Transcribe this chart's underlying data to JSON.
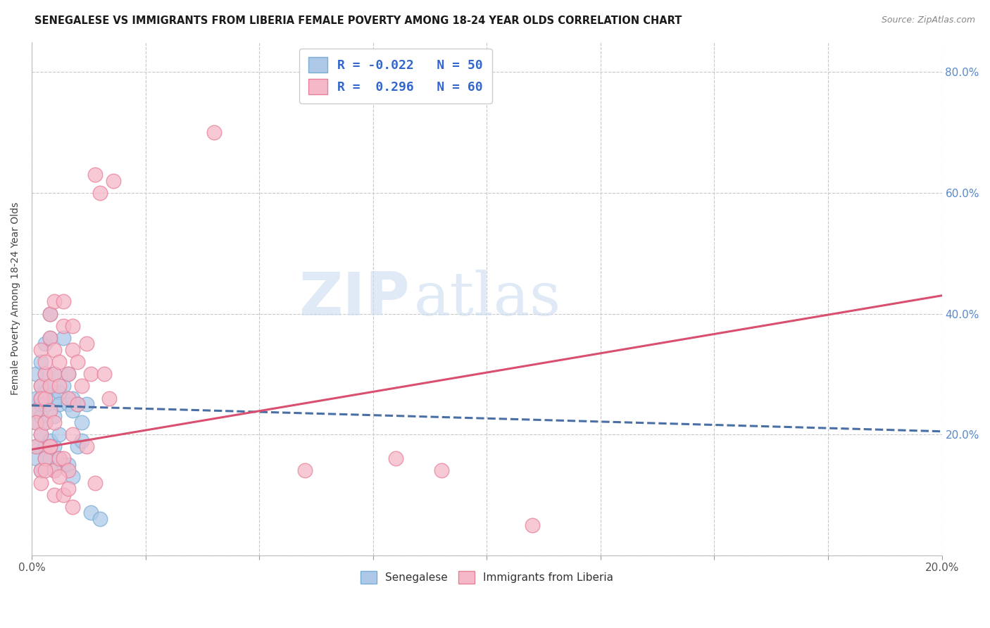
{
  "title": "SENEGALESE VS IMMIGRANTS FROM LIBERIA FEMALE POVERTY AMONG 18-24 YEAR OLDS CORRELATION CHART",
  "source": "Source: ZipAtlas.com",
  "ylabel": "Female Poverty Among 18-24 Year Olds",
  "xlim": [
    0.0,
    0.2
  ],
  "ylim": [
    0.0,
    0.85
  ],
  "xticks": [
    0.0,
    0.025,
    0.05,
    0.075,
    0.1,
    0.125,
    0.15,
    0.175,
    0.2
  ],
  "yticks": [
    0.0,
    0.2,
    0.4,
    0.6,
    0.8
  ],
  "xticklabels_show": [
    "0.0%",
    "20.0%"
  ],
  "right_yticklabels": [
    "",
    "20.0%",
    "40.0%",
    "60.0%",
    "80.0%"
  ],
  "blue_color": "#aec9e8",
  "blue_edge": "#7aadd4",
  "pink_color": "#f5b8c8",
  "pink_edge": "#e8809a",
  "blue_line_color": "#4a6fa5",
  "pink_line_color": "#d94f70",
  "grid_color": "#c8c8c8",
  "legend_R_blue": "-0.022",
  "legend_N_blue": "50",
  "legend_R_pink": "0.296",
  "legend_N_pink": "60",
  "senegalese_label": "Senegalese",
  "liberia_label": "Immigrants from Liberia",
  "watermark_zip": "ZIP",
  "watermark_atlas": "atlas",
  "blue_trend_x0": 0.0,
  "blue_trend_y0": 0.248,
  "blue_trend_x1": 0.2,
  "blue_trend_y1": 0.205,
  "pink_trend_x0": 0.0,
  "pink_trend_y0": 0.175,
  "pink_trend_x1": 0.2,
  "pink_trend_y1": 0.43,
  "blue_scatter_x": [
    0.001,
    0.001,
    0.001,
    0.001,
    0.002,
    0.002,
    0.002,
    0.002,
    0.002,
    0.003,
    0.003,
    0.003,
    0.003,
    0.004,
    0.004,
    0.004,
    0.005,
    0.005,
    0.005,
    0.006,
    0.006,
    0.007,
    0.007,
    0.008,
    0.008,
    0.009,
    0.009,
    0.01,
    0.011,
    0.012,
    0.001,
    0.001,
    0.002,
    0.002,
    0.003,
    0.003,
    0.003,
    0.004,
    0.004,
    0.005,
    0.005,
    0.006,
    0.006,
    0.007,
    0.008,
    0.009,
    0.01,
    0.011,
    0.013,
    0.015
  ],
  "blue_scatter_y": [
    0.26,
    0.24,
    0.3,
    0.22,
    0.28,
    0.26,
    0.32,
    0.23,
    0.25,
    0.35,
    0.3,
    0.27,
    0.25,
    0.4,
    0.36,
    0.28,
    0.3,
    0.26,
    0.23,
    0.27,
    0.25,
    0.36,
    0.28,
    0.25,
    0.3,
    0.24,
    0.26,
    0.25,
    0.22,
    0.25,
    0.18,
    0.16,
    0.2,
    0.14,
    0.22,
    0.18,
    0.16,
    0.19,
    0.16,
    0.18,
    0.14,
    0.16,
    0.2,
    0.15,
    0.15,
    0.13,
    0.18,
    0.19,
    0.07,
    0.06
  ],
  "pink_scatter_x": [
    0.001,
    0.001,
    0.002,
    0.002,
    0.002,
    0.003,
    0.003,
    0.003,
    0.004,
    0.004,
    0.004,
    0.005,
    0.005,
    0.005,
    0.006,
    0.006,
    0.007,
    0.007,
    0.008,
    0.008,
    0.009,
    0.009,
    0.01,
    0.011,
    0.012,
    0.013,
    0.014,
    0.015,
    0.016,
    0.018,
    0.001,
    0.002,
    0.002,
    0.003,
    0.003,
    0.004,
    0.004,
    0.005,
    0.005,
    0.006,
    0.007,
    0.008,
    0.009,
    0.01,
    0.012,
    0.014,
    0.017,
    0.06,
    0.08,
    0.09,
    0.002,
    0.003,
    0.004,
    0.005,
    0.006,
    0.007,
    0.008,
    0.009,
    0.04,
    0.11
  ],
  "pink_scatter_y": [
    0.24,
    0.22,
    0.28,
    0.26,
    0.34,
    0.3,
    0.26,
    0.32,
    0.28,
    0.36,
    0.4,
    0.3,
    0.34,
    0.42,
    0.32,
    0.28,
    0.38,
    0.42,
    0.3,
    0.26,
    0.38,
    0.34,
    0.32,
    0.28,
    0.35,
    0.3,
    0.63,
    0.6,
    0.3,
    0.62,
    0.18,
    0.2,
    0.14,
    0.16,
    0.22,
    0.18,
    0.24,
    0.22,
    0.14,
    0.16,
    0.16,
    0.14,
    0.2,
    0.25,
    0.18,
    0.12,
    0.26,
    0.14,
    0.16,
    0.14,
    0.12,
    0.14,
    0.18,
    0.1,
    0.13,
    0.1,
    0.11,
    0.08,
    0.7,
    0.05
  ]
}
